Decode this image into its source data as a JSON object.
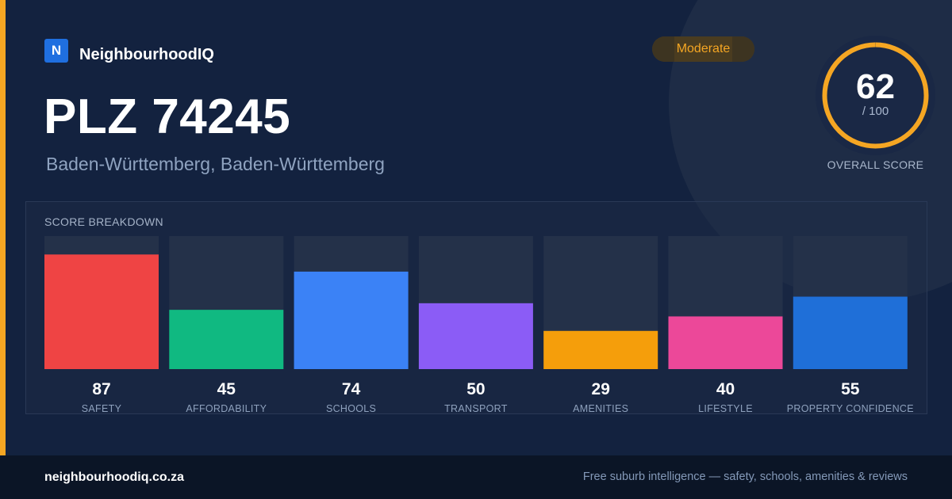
{
  "brand": {
    "logo_letter": "N",
    "name": "NeighbourhoodIQ"
  },
  "location": {
    "title": "PLZ 74245",
    "subtitle": "Baden-Württemberg, Baden-Württemberg"
  },
  "rating_badge": "Moderate",
  "overall": {
    "score": "62",
    "max": "/ 100",
    "label": "OVERALL SCORE",
    "fraction": 0.62
  },
  "colors": {
    "accent": "#f5a623",
    "brand": "#1f6fe0",
    "track": "#243149"
  },
  "chart_data": {
    "type": "bar",
    "title": "SCORE BREAKDOWN",
    "categories": [
      "SAFETY",
      "AFFORDABILITY",
      "SCHOOLS",
      "TRANSPORT",
      "AMENITIES",
      "LIFESTYLE",
      "PROPERTY CONFIDENCE"
    ],
    "values": [
      87,
      45,
      74,
      50,
      29,
      40,
      55
    ],
    "value_labels": [
      "87",
      "45",
      "74",
      "50",
      "29",
      "40",
      "55"
    ],
    "colors": [
      "#ef4444",
      "#10b981",
      "#3b82f6",
      "#8b5cf6",
      "#f59e0b",
      "#ec4899",
      "#1f6fd8"
    ],
    "ylim": [
      0,
      100
    ],
    "grid": false,
    "legend": "none"
  },
  "footer": {
    "site": "neighbourhoodiq.co.za",
    "tagline": "Free suburb intelligence — safety, schools, amenities & reviews"
  }
}
